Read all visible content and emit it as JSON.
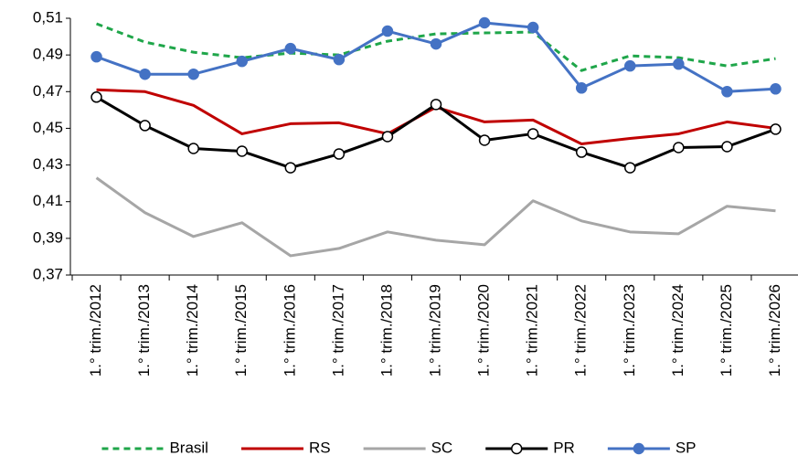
{
  "chart_data": {
    "type": "line",
    "categories": [
      "1.° trim./2012",
      "1.° trim./2013",
      "1.° trim./2014",
      "1.° trim./2015",
      "1.° trim./2016",
      "1.° trim./2017",
      "1.° trim./2018",
      "1.° trim./2019",
      "1.° trim./2020",
      "1.° trim./2021",
      "1.° trim./2022",
      "1.° trim./2023",
      "1.° trim./2024",
      "1.° trim./2025",
      "1.° trim./2026"
    ],
    "ylim": [
      0.37,
      0.51
    ],
    "yticks": [
      {
        "value": 0.37,
        "label": "0,37"
      },
      {
        "value": 0.39,
        "label": "0,39"
      },
      {
        "value": 0.41,
        "label": "0,41"
      },
      {
        "value": 0.43,
        "label": "0,43"
      },
      {
        "value": 0.45,
        "label": "0,45"
      },
      {
        "value": 0.47,
        "label": "0,47"
      },
      {
        "value": 0.49,
        "label": "0,49"
      },
      {
        "value": 0.51,
        "label": "0,51"
      }
    ],
    "legend": "bottom",
    "series": [
      {
        "name": "Brasil",
        "color": "#1fa64a",
        "dash": "dashed",
        "marker": "none",
        "values": [
          0.507,
          0.497,
          0.4915,
          0.4885,
          0.491,
          0.49,
          0.4975,
          0.5015,
          0.502,
          0.5025,
          0.4815,
          0.4895,
          0.4885,
          0.484,
          0.488
        ]
      },
      {
        "name": "RS",
        "color": "#c00000",
        "dash": "solid",
        "marker": "none",
        "values": [
          0.471,
          0.47,
          0.4625,
          0.447,
          0.4525,
          0.453,
          0.447,
          0.4615,
          0.4535,
          0.4545,
          0.4415,
          0.4445,
          0.447,
          0.4535,
          0.45
        ]
      },
      {
        "name": "SC",
        "color": "#a6a6a6",
        "dash": "solid",
        "marker": "none",
        "values": [
          0.423,
          0.404,
          0.391,
          0.3985,
          0.3805,
          0.3845,
          0.3935,
          0.389,
          0.3865,
          0.4105,
          0.3995,
          0.3935,
          0.3925,
          0.4075,
          0.405
        ]
      },
      {
        "name": "PR",
        "color": "#000000",
        "dash": "solid",
        "marker": "open-circle",
        "values": [
          0.467,
          0.4515,
          0.439,
          0.4375,
          0.4285,
          0.436,
          0.4455,
          0.463,
          0.4435,
          0.447,
          0.437,
          0.4285,
          0.4395,
          0.44,
          0.4495
        ]
      },
      {
        "name": "SP",
        "color": "#4472c4",
        "dash": "solid",
        "marker": "circle",
        "values": [
          0.489,
          0.4795,
          0.4795,
          0.4865,
          0.4935,
          0.4875,
          0.503,
          0.496,
          0.5075,
          0.505,
          0.472,
          0.484,
          0.485,
          0.47,
          0.4715
        ]
      }
    ]
  }
}
